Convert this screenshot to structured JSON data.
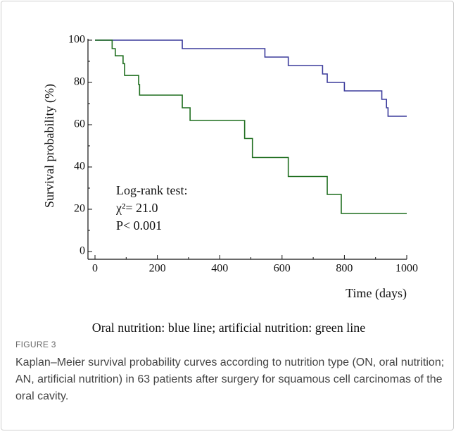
{
  "chart_data": {
    "type": "step",
    "ylabel": "Survival probability (%)",
    "xlabel": "Time (days)",
    "annotations": [
      "Log-rank test:",
      "χ²= 21.0",
      "P< 0.001"
    ],
    "caption": "Oral nutrition: blue line; artificial nutrition: green line",
    "xlim": [
      0,
      1000
    ],
    "ylim": [
      0,
      100
    ],
    "xticks": [
      0,
      200,
      400,
      600,
      800,
      1000
    ],
    "yticks": [
      0,
      20,
      40,
      60,
      80,
      100
    ],
    "xminor": [
      100,
      300,
      500,
      700,
      900
    ],
    "yminor": [
      10,
      30,
      50,
      70,
      90
    ],
    "series": [
      {
        "color": "#3b3b9c",
        "x": [
          0,
          280,
          545,
          620,
          730,
          745,
          800,
          920,
          935,
          940,
          1000
        ],
        "values": [
          100,
          96,
          92,
          88,
          84,
          80,
          76,
          72,
          68,
          64,
          64
        ]
      },
      {
        "color": "#1f6e1f",
        "x": [
          0,
          55,
          65,
          90,
          95,
          140,
          143,
          280,
          305,
          480,
          505,
          620,
          745,
          790,
          1000
        ],
        "values": [
          100,
          96,
          92.6,
          88.9,
          83.3,
          79,
          74,
          68,
          62,
          53.5,
          44.5,
          35.5,
          27,
          18,
          18
        ]
      }
    ]
  },
  "figure": {
    "label": "FIGURE 3",
    "caption": "Kaplan–Meier survival probability curves according to nutrition type (ON, oral nutrition; AN, artificial nutrition) in 63 patients after surgery for squamous cell carcinomas of the oral cavity."
  }
}
